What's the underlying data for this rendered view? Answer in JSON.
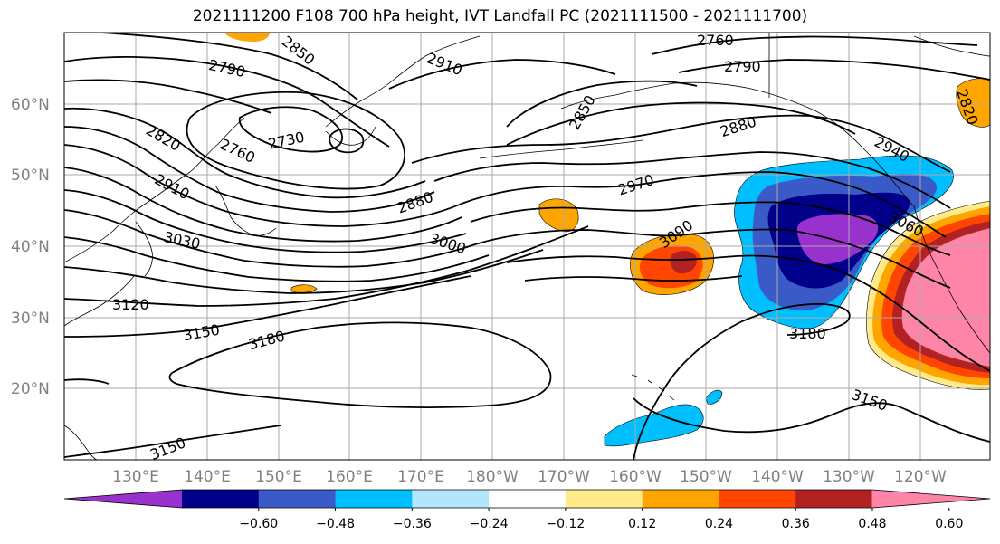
{
  "title": "2021111200 F108 700 hPa height, IVT Landfall PC (2021111500 - 2021111700)",
  "lat_labels": [
    "60°N",
    "50°N",
    "40°N",
    "30°N",
    "20°N"
  ],
  "lon_labels": [
    "130°E",
    "140°E",
    "150°E",
    "160°E",
    "170°E",
    "180°W",
    "170°W",
    "160°W",
    "150°W",
    "140°W",
    "130°W",
    "120°W"
  ],
  "contour_labels": [
    "2850",
    "2910",
    "2760",
    "2790",
    "2790",
    "2820",
    "2730",
    "2760",
    "2850",
    "2880",
    "2940",
    "2820",
    "2910",
    "2880",
    "2970",
    "3090",
    "3060",
    "3030",
    "3000",
    "3120",
    "3150",
    "3180",
    "3180",
    "3150",
    "3150"
  ],
  "colorbar": {
    "ticks": [
      "−0.60",
      "−0.48",
      "−0.36",
      "−0.24",
      "−0.12",
      "0.12",
      "0.24",
      "0.36",
      "0.48",
      "0.60"
    ],
    "colors": [
      "#9932CC",
      "#00008B",
      "#3A5BC7",
      "#00BFFF",
      "#B3E5FC",
      "#FFFFFF",
      "#FFEB8A",
      "#FFA500",
      "#FF4500",
      "#B22222",
      "#FF85A8"
    ]
  }
}
